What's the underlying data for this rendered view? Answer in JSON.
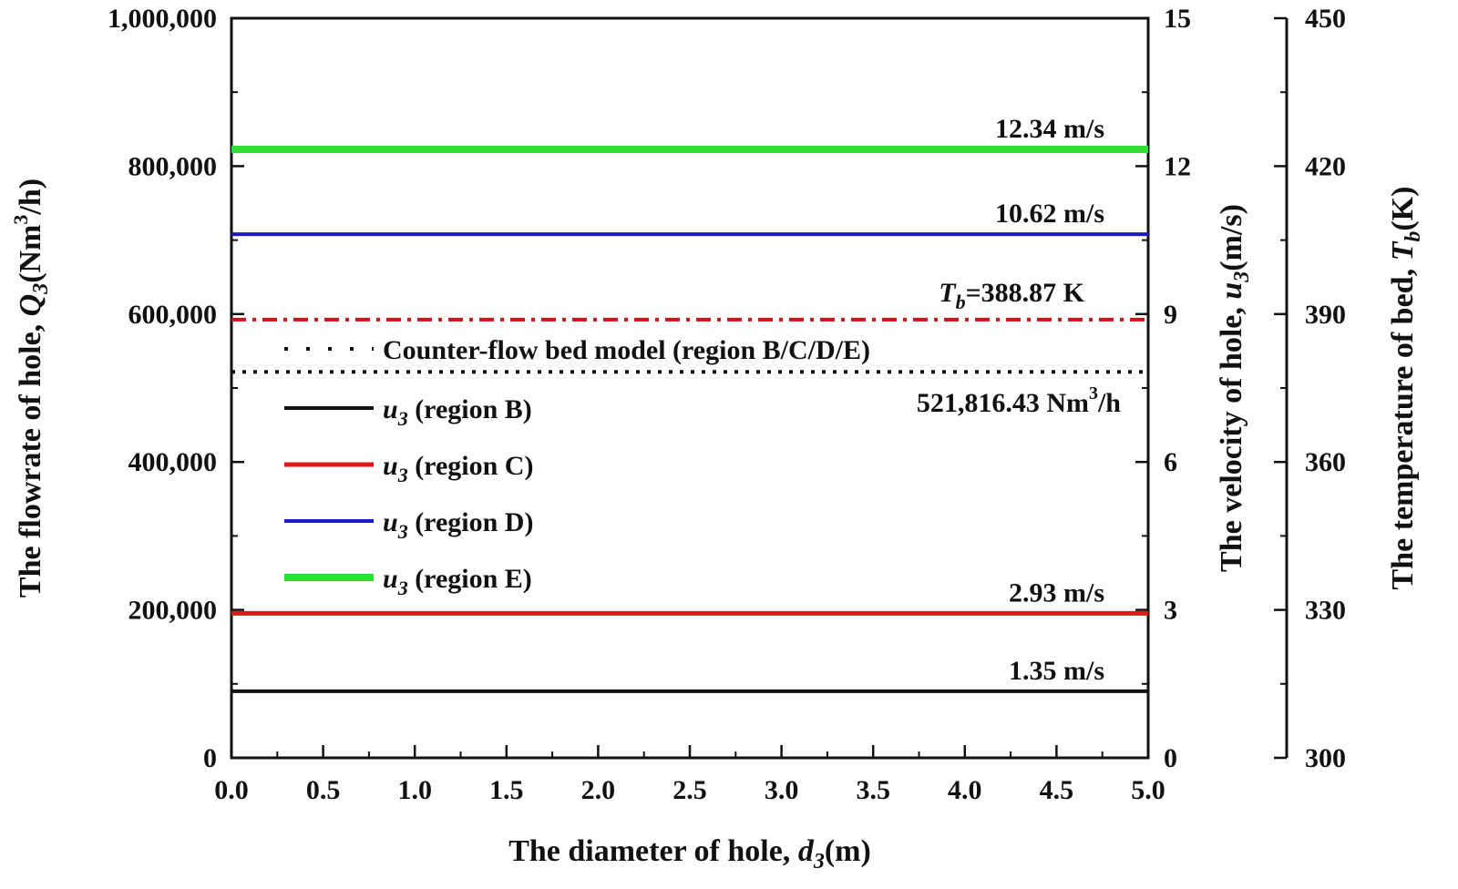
{
  "chart_data": {
    "type": "line",
    "x_axis": {
      "label_prefix": "The diameter of hole, ",
      "label_var": "d",
      "label_sub": "3",
      "label_suffix": "(m)",
      "range": [
        0,
        5
      ],
      "ticks": [
        "0.0",
        "0.5",
        "1.0",
        "1.5",
        "2.0",
        "2.5",
        "3.0",
        "3.5",
        "4.0",
        "4.5",
        "5.0"
      ]
    },
    "y_axis_left": {
      "label_prefix": "The flowrate of hole, ",
      "label_var": "Q",
      "label_sub": "3",
      "label_suffix_a": "(Nm",
      "label_sup": "3",
      "label_suffix_b": "/h)",
      "range": [
        0,
        1000000
      ],
      "ticks": [
        "0",
        "200,000",
        "400,000",
        "600,000",
        "800,000",
        "1,000,000"
      ]
    },
    "y_axis_right1": {
      "label_prefix": "The velocity of hole, ",
      "label_var": "u",
      "label_sub": "3",
      "label_suffix": "(m/s)",
      "range": [
        0,
        15
      ],
      "ticks": [
        "0",
        "3",
        "6",
        "9",
        "12",
        "15"
      ]
    },
    "y_axis_right2": {
      "label_prefix": "The temperature of bed, ",
      "label_var": "T",
      "label_sub": "b",
      "label_suffix": "(K)",
      "range": [
        300,
        450
      ],
      "ticks": [
        "300",
        "330",
        "360",
        "390",
        "420",
        "450"
      ]
    },
    "series": [
      {
        "key": "B",
        "name_var": "u",
        "name_sub": "3",
        "name_rest": " (region B)",
        "axis": "velocity",
        "values": [
          1.35,
          1.35
        ],
        "color": "#111111",
        "style": "solid",
        "annotation": "1.35 m/s"
      },
      {
        "key": "C",
        "name_var": "u",
        "name_sub": "3",
        "name_rest": " (region C)",
        "axis": "velocity",
        "values": [
          2.93,
          2.93
        ],
        "color": "#e01818",
        "style": "solid",
        "annotation": "2.93 m/s"
      },
      {
        "key": "D",
        "name_var": "u",
        "name_sub": "3",
        "name_rest": " (region D)",
        "axis": "velocity",
        "values": [
          10.62,
          10.62
        ],
        "color": "#1a1ac8",
        "style": "solid",
        "annotation": "10.62 m/s"
      },
      {
        "key": "E",
        "name_var": "u",
        "name_sub": "3",
        "name_rest": " (region E)",
        "axis": "velocity",
        "values": [
          12.34,
          12.34
        ],
        "color": "#33dd33",
        "style": "solid",
        "annotation": "12.34 m/s"
      },
      {
        "key": "CF",
        "name": "Counter-flow bed model (region B/C/D/E)",
        "axis": "flowrate",
        "values": [
          521816.43,
          521816.43
        ],
        "color": "#111111",
        "style": "dotted",
        "annotation_a": "521,816.43 Nm",
        "annotation_sup": "3",
        "annotation_b": "/h"
      },
      {
        "key": "Tb",
        "axis": "temperature",
        "values": [
          388.87,
          388.87
        ],
        "color": "#c81818",
        "style": "dashdot",
        "annotation_var": "T",
        "annotation_sub": "b",
        "annotation_rest": "=388.87 K"
      }
    ],
    "x": [
      0,
      5
    ],
    "legend_position": "upper-left"
  }
}
